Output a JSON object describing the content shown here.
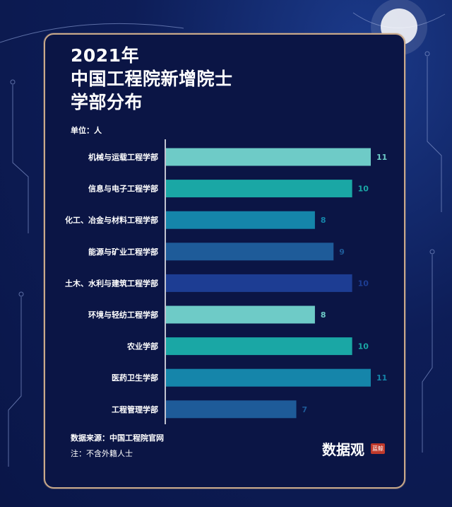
{
  "title_lines": [
    "2021年",
    "中国工程院新增院士",
    "学部分布"
  ],
  "unit_label": "单位：人",
  "source": "数据来源：中国工程院官网",
  "note": "注：不含外籍人士",
  "brand": "数据观",
  "brand_tag": "蓝鲸",
  "colors": {
    "background": "#0c1a4f",
    "frame": "#c9a98a",
    "bar_palette": [
      "#6ecbc7",
      "#1aa7a5",
      "#1585aa",
      "#1e5b99",
      "#1d3d93"
    ]
  },
  "chart_data": {
    "type": "bar",
    "orientation": "horizontal",
    "title": "2021年 中国工程院新增院士 学部分布",
    "xlabel": "",
    "ylabel": "单位：人",
    "xlim": [
      0,
      11
    ],
    "grid": false,
    "categories": [
      "机械与运载工程学部",
      "信息与电子工程学部",
      "化工、冶金与材料工程学部",
      "能源与矿业工程学部",
      "土木、水利与建筑工程学部",
      "环境与轻纺工程学部",
      "农业学部",
      "医药卫生学部",
      "工程管理学部"
    ],
    "values": [
      11,
      10,
      8,
      9,
      10,
      8,
      10,
      11,
      7
    ]
  }
}
